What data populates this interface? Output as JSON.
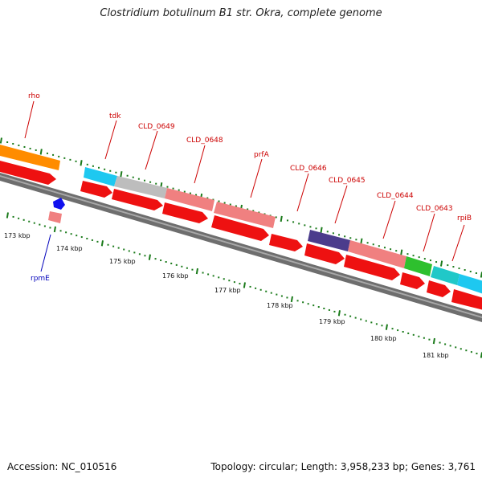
{
  "map": {
    "title": "Clostridium botulinum B1 str. Okra, complete genome",
    "accession": "Accession: NC_010516",
    "summary": "Topology: circular; Length: 3,958,233 bp; Genes: 3,761",
    "colors": {
      "label_red": "#cc0000",
      "label_blue": "#0000bb",
      "tick_green": "#1a7a1a",
      "backbone": "#777777",
      "cds_red": "#ee1111",
      "gene_pink": "#f08080",
      "gene_orange": "#ff8c00",
      "gene_cyan": "#1ec8f0",
      "gene_gray": "#bdbdbd",
      "gene_navy": "#4b3c8c",
      "gene_green": "#2ec02e",
      "gene_teal": "#20c8c8",
      "gene_blue": "#1010ee"
    },
    "scale_labels": [
      "173 kbp",
      "174 kbp",
      "175 kbp",
      "176 kbp",
      "177 kbp",
      "178 kbp",
      "179 kbp",
      "180 kbp",
      "181 kbp"
    ],
    "gene_labels": [
      "rho",
      "tdk",
      "CLD_0649",
      "CLD_0648",
      "prfA",
      "CLD_0646",
      "CLD_0645",
      "CLD_0644",
      "CLD_0643",
      "rpiB",
      "rpmE"
    ]
  }
}
